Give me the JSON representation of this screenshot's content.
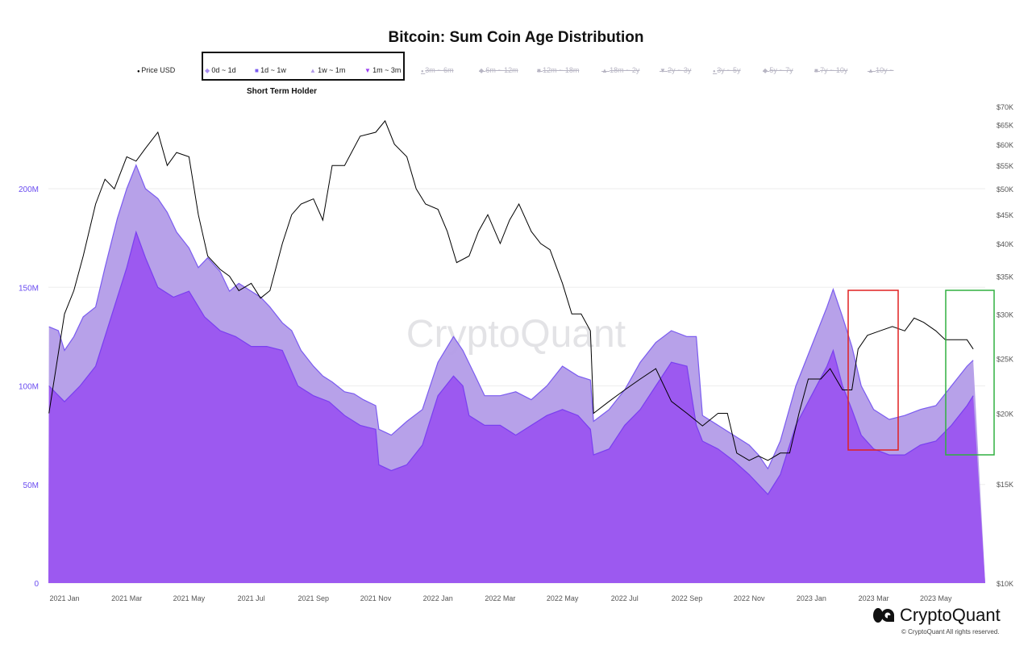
{
  "chart_data": {
    "type": "area",
    "title": "Bitcoin: Sum Coin Age Distribution",
    "group_label": "Short Term Holder",
    "watermark": "CryptoQuant",
    "x_unit": "months since 2021 Jan",
    "x_ticks": [
      "2021 Jan",
      "2021 Mar",
      "2021 May",
      "2021 Jul",
      "2021 Sep",
      "2021 Nov",
      "2022 Jan",
      "2022 Mar",
      "2022 May",
      "2022 Jul",
      "2022 Sep",
      "2022 Nov",
      "2023 Jan",
      "2023 Mar",
      "2023 May"
    ],
    "y_left": {
      "ticks": [
        "0",
        "50M",
        "100M",
        "150M",
        "200M"
      ],
      "tick_values": [
        0,
        50,
        100,
        150,
        200
      ],
      "range": [
        0,
        238
      ],
      "unit": "M"
    },
    "y_right": {
      "scale": "log",
      "ticks": [
        "$10K",
        "$15K",
        "$20K",
        "$25K",
        "$30K",
        "$35K",
        "$40K",
        "$45K",
        "$50K",
        "$55K",
        "$60K",
        "$65K",
        "$70K"
      ],
      "tick_values": [
        10,
        15,
        20,
        25,
        30,
        35,
        40,
        45,
        50,
        55,
        60,
        65,
        70
      ],
      "range": [
        10,
        70
      ],
      "unit": "K USD"
    },
    "legend": [
      {
        "label": "Price USD",
        "marker": "circle",
        "color": "#000000",
        "active": true
      },
      {
        "label": "0d ~ 1d",
        "marker": "diamond",
        "color": "#a98ef0",
        "active": true
      },
      {
        "label": "1d ~ 1w",
        "marker": "square",
        "color": "#7b5cf0",
        "active": true
      },
      {
        "label": "1w ~ 1m",
        "marker": "triangle",
        "color": "#b39ce8",
        "active": true
      },
      {
        "label": "1m ~ 3m",
        "marker": "triangle-down",
        "color": "#9a40f0",
        "active": true
      },
      {
        "label": "3m ~ 6m",
        "marker": "circle",
        "active": false
      },
      {
        "label": "6m ~ 12m",
        "marker": "diamond",
        "active": false
      },
      {
        "label": "12m ~ 18m",
        "marker": "square",
        "active": false
      },
      {
        "label": "18m ~ 2y",
        "marker": "triangle",
        "active": false
      },
      {
        "label": "2y ~ 3y",
        "marker": "triangle-down",
        "active": false
      },
      {
        "label": "3y ~ 5y",
        "marker": "circle",
        "active": false
      },
      {
        "label": "5y ~ 7y",
        "marker": "diamond",
        "active": false
      },
      {
        "label": "7y ~ 10y",
        "marker": "square",
        "active": false
      },
      {
        "label": "10y ~",
        "marker": "triangle",
        "active": false
      }
    ],
    "series": [
      {
        "name": "Short term total (upper layer)",
        "color": "#b39ce8",
        "axis": "left",
        "x": [
          -0.5,
          -0.2,
          0,
          0.3,
          0.6,
          1,
          1.3,
          1.7,
          2,
          2.3,
          2.6,
          3,
          3.3,
          3.6,
          4,
          4.3,
          4.6,
          5,
          5.3,
          5.6,
          6,
          6.3,
          6.6,
          7,
          7.3,
          7.6,
          8,
          8.3,
          8.6,
          9,
          9.3,
          9.6,
          10,
          10.1,
          10.5,
          11,
          11.5,
          12,
          12.5,
          12.8,
          13.2,
          13.5,
          14,
          14.5,
          15,
          15.5,
          16,
          16.5,
          16.9,
          17,
          17.5,
          18,
          18.5,
          19,
          19.5,
          20,
          20.3,
          20.5,
          21,
          21.5,
          22,
          22.3,
          22.6,
          23,
          23.5,
          24,
          24.5,
          24.7,
          25,
          25.3,
          25.6,
          26,
          26.5,
          27,
          27.5,
          28,
          28.5,
          29,
          29.2
        ],
        "values": [
          130,
          128,
          118,
          125,
          135,
          140,
          160,
          185,
          200,
          212,
          200,
          195,
          188,
          178,
          170,
          160,
          165,
          158,
          148,
          152,
          148,
          145,
          140,
          132,
          128,
          118,
          110,
          105,
          102,
          97,
          96,
          93,
          90,
          78,
          75,
          82,
          88,
          112,
          125,
          118,
          105,
          95,
          95,
          97,
          93,
          100,
          110,
          105,
          103,
          82,
          88,
          98,
          112,
          122,
          128,
          125,
          125,
          85,
          80,
          75,
          70,
          65,
          58,
          72,
          100,
          120,
          140,
          149,
          135,
          120,
          100,
          88,
          83,
          85,
          88,
          90,
          100,
          110,
          113
        ]
      },
      {
        "name": "Short term lower layer",
        "color": "#9a55f0",
        "axis": "left",
        "x": [
          -0.5,
          0,
          0.5,
          1,
          1.5,
          2,
          2.3,
          2.6,
          3,
          3.5,
          4,
          4.5,
          5,
          5.5,
          6,
          6.5,
          7,
          7.5,
          8,
          8.5,
          9,
          9.5,
          10,
          10.1,
          10.5,
          11,
          11.5,
          12,
          12.5,
          12.8,
          13,
          13.5,
          14,
          14.5,
          15,
          15.5,
          16,
          16.5,
          16.9,
          17,
          17.5,
          18,
          18.5,
          19,
          19.5,
          20,
          20.3,
          20.5,
          21,
          21.5,
          22,
          22.3,
          22.6,
          23,
          23.5,
          24,
          24.5,
          24.7,
          25,
          25.3,
          25.6,
          26,
          26.5,
          27,
          27.5,
          28,
          28.5,
          29,
          29.2
        ],
        "values": [
          100,
          92,
          100,
          110,
          135,
          160,
          178,
          165,
          150,
          145,
          148,
          135,
          128,
          125,
          120,
          120,
          118,
          100,
          95,
          92,
          85,
          80,
          78,
          60,
          57,
          60,
          70,
          95,
          105,
          100,
          85,
          80,
          80,
          75,
          80,
          85,
          88,
          85,
          78,
          65,
          68,
          80,
          88,
          100,
          112,
          110,
          80,
          72,
          68,
          62,
          55,
          50,
          45,
          55,
          80,
          95,
          110,
          118,
          100,
          88,
          75,
          68,
          65,
          65,
          70,
          72,
          80,
          90,
          95
        ]
      },
      {
        "name": "Price USD",
        "color": "#000000",
        "axis": "right",
        "x": [
          -0.5,
          0,
          0.3,
          0.6,
          1,
          1.3,
          1.6,
          2,
          2.3,
          2.6,
          3,
          3.3,
          3.6,
          4,
          4.3,
          4.6,
          5,
          5.3,
          5.6,
          6,
          6.3,
          6.6,
          7,
          7.3,
          7.6,
          8,
          8.3,
          8.6,
          9,
          9.5,
          10,
          10.3,
          10.6,
          11,
          11.3,
          11.6,
          12,
          12.3,
          12.6,
          13,
          13.3,
          13.6,
          14,
          14.3,
          14.6,
          15,
          15.3,
          15.6,
          16,
          16.3,
          16.6,
          16.9,
          17,
          17.5,
          18,
          18.5,
          19,
          19.5,
          20,
          20.5,
          21,
          21.3,
          21.6,
          22,
          22.3,
          22.6,
          23,
          23.3,
          23.6,
          23.9,
          24.3,
          24.6,
          25,
          25.3,
          25.5,
          25.8,
          26.2,
          26.6,
          27,
          27.3,
          27.6,
          28,
          28.3,
          28.6,
          29,
          29.2
        ],
        "values": [
          20,
          30,
          33,
          38,
          47,
          52,
          50,
          57,
          56,
          59,
          63,
          55,
          58,
          57,
          45,
          38,
          36,
          35,
          33,
          34,
          32,
          33,
          40,
          45,
          47,
          48,
          44,
          55,
          55,
          62,
          63,
          66,
          60,
          57,
          50,
          47,
          46,
          42,
          37,
          38,
          42,
          45,
          40,
          44,
          47,
          42,
          40,
          39,
          34,
          30,
          30,
          28,
          20,
          21,
          22,
          23,
          24,
          21,
          20,
          19,
          20,
          20,
          17,
          16.5,
          16.8,
          16.5,
          17,
          17,
          20,
          23,
          23,
          24,
          22,
          22,
          26,
          27.5,
          28,
          28.5,
          28,
          29.5,
          29,
          28,
          27,
          27,
          27,
          26
        ]
      }
    ],
    "annotations": [
      {
        "type": "box",
        "color": "#e02020",
        "from": "2023 Feb",
        "to": "2023 Mar"
      },
      {
        "type": "box",
        "color": "#30b040",
        "from": "2023 Apr",
        "to": "2023 Jun"
      }
    ]
  },
  "footer": {
    "brand": "CryptoQuant",
    "copyright": "© CryptoQuant All rights reserved."
  }
}
